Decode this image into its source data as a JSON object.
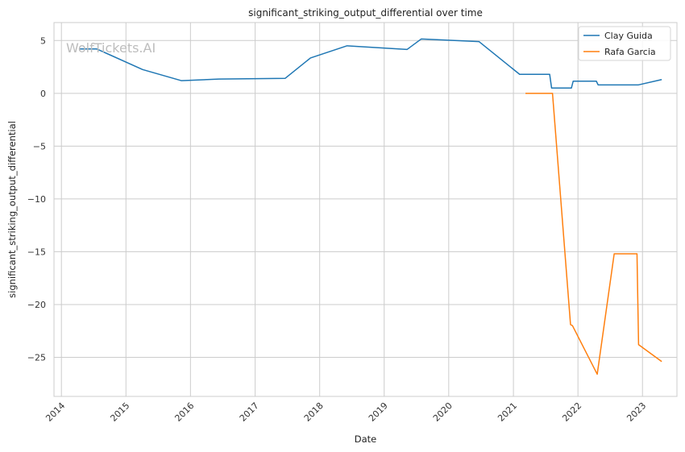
{
  "chart_data": {
    "type": "line",
    "title": "significant_striking_output_differential over time",
    "xlabel": "Date",
    "ylabel": "significant_striking_output_differential",
    "xlim": [
      "2013-11-20",
      "2023-07-15"
    ],
    "ylim": [
      -28.7,
      6.7
    ],
    "x_ticks": [
      "2014",
      "2015",
      "2016",
      "2017",
      "2018",
      "2019",
      "2020",
      "2021",
      "2022",
      "2023"
    ],
    "y_ticks": [
      5,
      0,
      -5,
      -10,
      -15,
      -20,
      -25
    ],
    "y_tick_labels": [
      "5",
      "0",
      "−5",
      "−10",
      "−15",
      "−20",
      "−25"
    ],
    "grid": true,
    "legend_position": "top-right",
    "watermark": "WolfTickets.AI",
    "series": [
      {
        "name": "Clay Guida",
        "color": "#1f77b4",
        "points": [
          [
            "2014-04-15",
            4.2
          ],
          [
            "2014-07-20",
            4.2
          ],
          [
            "2015-04-05",
            2.25
          ],
          [
            "2015-11-10",
            1.2
          ],
          [
            "2016-06-10",
            1.35
          ],
          [
            "2017-06-20",
            1.42
          ],
          [
            "2017-11-10",
            3.35
          ],
          [
            "2018-06-05",
            4.5
          ],
          [
            "2019-05-10",
            4.15
          ],
          [
            "2019-07-30",
            5.15
          ],
          [
            "2020-06-20",
            4.9
          ],
          [
            "2021-02-05",
            1.8
          ],
          [
            "2021-07-25",
            1.8
          ],
          [
            "2021-08-05",
            0.5
          ],
          [
            "2021-11-25",
            0.5
          ],
          [
            "2021-12-05",
            1.15
          ],
          [
            "2022-04-15",
            1.15
          ],
          [
            "2022-04-25",
            0.8
          ],
          [
            "2022-12-10",
            0.8
          ],
          [
            "2023-04-20",
            1.3
          ]
        ]
      },
      {
        "name": "Rafa Garcia",
        "color": "#ff7f0e",
        "points": [
          [
            "2021-03-10",
            0.0
          ],
          [
            "2021-08-10",
            0.0
          ],
          [
            "2021-11-20",
            -21.9
          ],
          [
            "2021-12-01",
            -22.0
          ],
          [
            "2022-04-20",
            -26.6
          ],
          [
            "2022-07-25",
            -15.2
          ],
          [
            "2022-12-01",
            -15.2
          ],
          [
            "2022-12-10",
            -23.8
          ],
          [
            "2023-04-20",
            -25.4
          ]
        ]
      }
    ]
  }
}
